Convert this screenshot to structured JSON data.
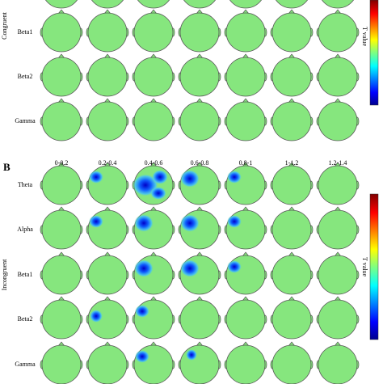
{
  "panel_a": {
    "group_label": "Congruent",
    "row_labels": [
      "Beta1",
      "Beta2",
      "Gamma"
    ],
    "colorbar_label": "T value"
  },
  "panel_b": {
    "panel_label": "B",
    "group_label": "Incongruent",
    "column_labels": [
      "0-0.2",
      "0.2-0.4",
      "0.4-0.6",
      "0.6-0.8",
      "0.8-1",
      "1-1.2",
      "1.2-1.4"
    ],
    "row_labels": [
      "Theta",
      "Alpha",
      "Beta1",
      "Beta2",
      "Gamma"
    ],
    "colorbar_label": "T value"
  }
}
